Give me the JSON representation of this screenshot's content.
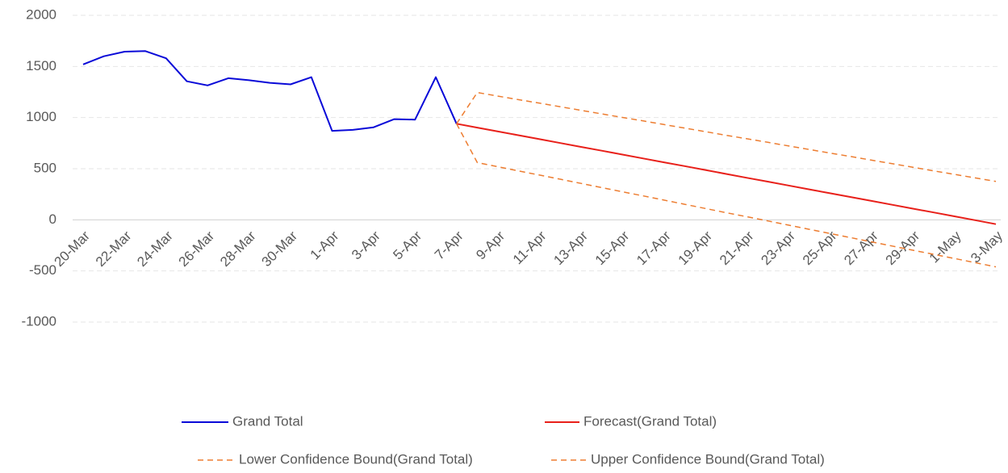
{
  "chart_data": {
    "type": "line",
    "categories": [
      "20-Mar",
      null,
      "22-Mar",
      null,
      "24-Mar",
      null,
      "26-Mar",
      null,
      "28-Mar",
      null,
      "30-Mar",
      null,
      "1-Apr",
      null,
      "3-Apr",
      null,
      "5-Apr",
      null,
      "7-Apr",
      null,
      "9-Apr",
      null,
      "11-Apr",
      null,
      "13-Apr",
      null,
      "15-Apr",
      null,
      "17-Apr",
      null,
      "19-Apr",
      null,
      "21-Apr",
      null,
      "23-Apr",
      null,
      "25-Apr",
      null,
      "27-Apr",
      null,
      "29-Apr",
      null,
      "1-May",
      null,
      "3-May"
    ],
    "ylim": [
      -1000,
      2000
    ],
    "yticks": [
      -1000,
      -500,
      0,
      500,
      1000,
      1500,
      2000
    ],
    "grid": true,
    "series": [
      {
        "name": "Grand Total",
        "color": "#0a0ad8",
        "dashed": false,
        "values": [
          1520,
          1600,
          1645,
          1650,
          1580,
          1355,
          1315,
          1385,
          1365,
          1340,
          1325,
          1395,
          870,
          880,
          905,
          985,
          980,
          1395,
          940,
          null,
          null,
          null,
          null,
          null,
          null,
          null,
          null,
          null,
          null,
          null,
          null,
          null,
          null,
          null,
          null,
          null,
          null,
          null,
          null,
          null,
          null,
          null,
          null,
          null,
          null
        ]
      },
      {
        "name": "Forecast(Grand Total)",
        "color": "#e8201a",
        "dashed": false,
        "values": [
          null,
          null,
          null,
          null,
          null,
          null,
          null,
          null,
          null,
          null,
          null,
          null,
          null,
          null,
          null,
          null,
          null,
          null,
          940,
          902,
          864,
          827,
          789,
          751,
          713,
          676,
          638,
          600,
          562,
          525,
          487,
          449,
          411,
          374,
          336,
          298,
          260,
          223,
          185,
          147,
          109,
          72,
          34,
          -4,
          -42
        ]
      },
      {
        "name": "Lower Confidence Bound(Grand Total)",
        "color": "#ed7d31",
        "dashed": true,
        "values": [
          null,
          null,
          null,
          null,
          null,
          null,
          null,
          null,
          null,
          null,
          null,
          null,
          null,
          null,
          null,
          null,
          null,
          null,
          940,
          560,
          519,
          478,
          438,
          397,
          356,
          315,
          274,
          234,
          193,
          152,
          111,
          70,
          30,
          -11,
          -52,
          -93,
          -134,
          -174,
          -215,
          -256,
          -297,
          -338,
          -378,
          -419,
          -460
        ]
      },
      {
        "name": "Upper Confidence Bound(Grand Total)",
        "color": "#ed7d31",
        "dashed": true,
        "values": [
          null,
          null,
          null,
          null,
          null,
          null,
          null,
          null,
          null,
          null,
          null,
          null,
          null,
          null,
          null,
          null,
          null,
          null,
          940,
          1245,
          1210,
          1175,
          1141,
          1106,
          1071,
          1036,
          1001,
          967,
          932,
          897,
          862,
          827,
          793,
          758,
          723,
          688,
          653,
          619,
          584,
          549,
          514,
          479,
          445,
          410,
          375
        ]
      }
    ]
  }
}
